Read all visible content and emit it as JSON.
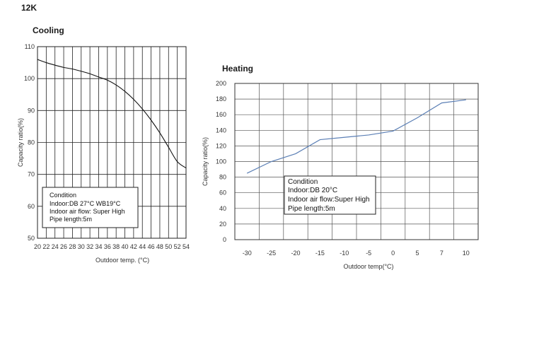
{
  "page_title": "12K",
  "chart_data": [
    {
      "type": "line",
      "title": "Cooling",
      "xlabel": "Outdoor temp. (°C)",
      "ylabel": "Capacity ratio(%)",
      "x_ticks": [
        20,
        22,
        24,
        26,
        28,
        30,
        32,
        34,
        36,
        38,
        40,
        42,
        44,
        46,
        48,
        50,
        52,
        54
      ],
      "y_ticks": [
        50,
        60,
        70,
        80,
        90,
        100,
        110
      ],
      "xlim": [
        20,
        54
      ],
      "ylim": [
        50,
        110
      ],
      "grid": true,
      "series": [
        {
          "x": [
            20,
            22,
            24,
            26,
            28,
            30,
            32,
            34,
            36,
            38,
            40,
            42,
            44,
            46,
            48,
            50,
            52,
            54
          ],
          "values": [
            106,
            105,
            104.2,
            103.5,
            103,
            102.3,
            101.5,
            100.5,
            99.5,
            98,
            96,
            93.5,
            90.5,
            87,
            83,
            78.5,
            74,
            72
          ]
        }
      ],
      "condition": {
        "heading": "Condition",
        "lines": [
          "Indoor:DB 27°C  WB19°C",
          "Indoor air flow: Super High",
          "Pipe length:5m"
        ]
      }
    },
    {
      "type": "line",
      "title": "Heating",
      "xlabel": "Outdoor temp(°C)",
      "ylabel": "Capacity ratio(%)",
      "x_ticks": [
        -30,
        -25,
        -20,
        -15,
        -10,
        -5,
        0,
        5,
        7,
        10
      ],
      "y_ticks": [
        0,
        20,
        40,
        60,
        80,
        100,
        120,
        140,
        160,
        180,
        200
      ],
      "ylim": [
        0,
        200
      ],
      "grid": true,
      "color": "#5b7fb5",
      "series": [
        {
          "x": [
            -30,
            -25,
            -20,
            -15,
            -10,
            -5,
            0,
            5,
            7,
            10
          ],
          "values": [
            85,
            100,
            110,
            128,
            131,
            134,
            139,
            156,
            175,
            179
          ]
        }
      ],
      "condition": {
        "heading": "Condition",
        "lines": [
          "Indoor:DB 20°C",
          "Indoor air flow:Super High",
          "Pipe length:5m"
        ]
      }
    }
  ]
}
